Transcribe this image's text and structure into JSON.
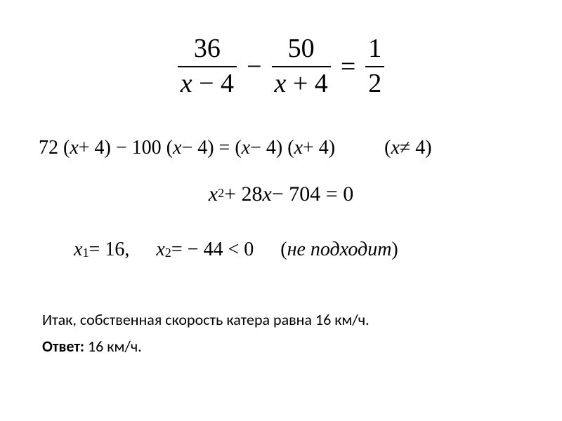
{
  "equation1": {
    "frac1_num": "36",
    "frac1_den_var": "x",
    "frac1_den_op": " − 4",
    "minus": "−",
    "frac2_num": "50",
    "frac2_den_var": "x",
    "frac2_den_op": " + 4",
    "equals": "=",
    "frac3_num": "1",
    "frac3_den": "2"
  },
  "equation2": {
    "lhs_a": "72 (",
    "lhs_var1": "x",
    "lhs_b": " + 4) − 100 (",
    "lhs_var2": "x",
    "lhs_c": " − 4) = (",
    "lhs_var3": "x",
    "lhs_d": " − 4) (",
    "lhs_var4": "x",
    "lhs_e": " + 4)",
    "cond_open": "(",
    "cond_var": "x",
    "cond_rest": " ≠ 4)"
  },
  "equation3": {
    "var": "x",
    "sup": "2",
    "rest": " + 28 ",
    "var2": "x",
    "tail": " − 704 = 0"
  },
  "equation4": {
    "x1_var": "x",
    "x1_sub": "1",
    "x1_val": " = 16,",
    "x2_var": "x",
    "x2_sub": "2",
    "x2_val": " = − 44 < 0",
    "note_open": "(",
    "note_text": "не  подходит",
    "note_close": ")"
  },
  "text": {
    "conclusion": "Итак, собственная скорость катера равна 16 км/ч.",
    "answer_label": "Ответ:",
    "answer_value": " 16 км/ч."
  },
  "style": {
    "background": "#ffffff",
    "text_color": "#000000",
    "math_font": "Times New Roman",
    "body_font": "Calibri",
    "eq1_fontsize": 38,
    "eq_other_fontsize": 28,
    "body_fontsize": 22
  }
}
